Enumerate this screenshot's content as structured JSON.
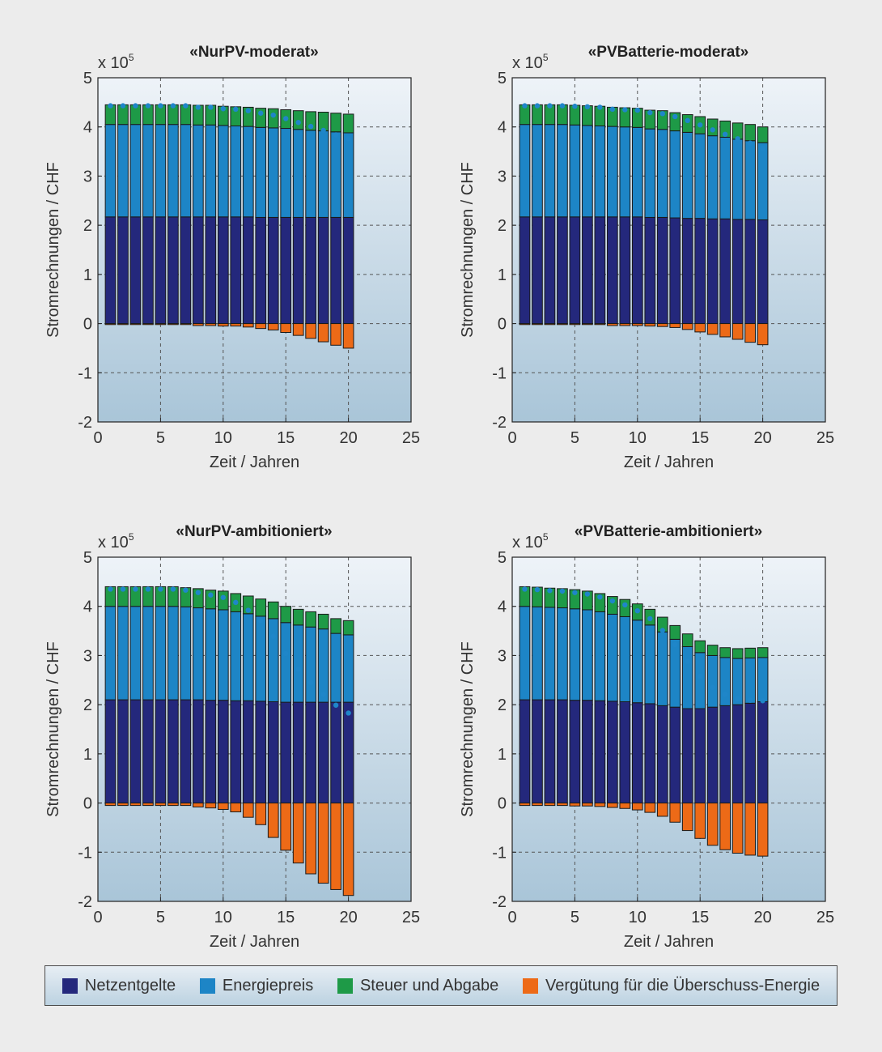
{
  "colors": {
    "netz": "#24287c",
    "energie": "#1d85c6",
    "steuer": "#1e9a47",
    "verguetung": "#ed6a17",
    "dots": "#1f86c9"
  },
  "legend": {
    "items": [
      {
        "label": "Netzentgelte",
        "color": "#24287c"
      },
      {
        "label": "Energiepreis",
        "color": "#1d85c6"
      },
      {
        "label": "Steuer und Abgabe",
        "color": "#1e9a47"
      },
      {
        "label": "Vergütung für die Überschuss-Energie",
        "color": "#ed6a17"
      }
    ]
  },
  "chart_data": [
    {
      "type": "bar",
      "title": "«NurPV-moderat»",
      "xlabel": "Zeit / Jahren",
      "ylabel": "Stromrechnungen / CHF",
      "y_multiplier_label": "x 10",
      "y_multiplier_exp": "5",
      "xlim": [
        0,
        25
      ],
      "ylim": [
        -2,
        5
      ],
      "xticks": [
        "0",
        "5",
        "10",
        "15",
        "20",
        "25"
      ],
      "yticks": [
        "-2",
        "-1",
        "0",
        "1",
        "2",
        "3",
        "4",
        "5"
      ],
      "grid": true,
      "stacked": true,
      "x": [
        1,
        2,
        3,
        4,
        5,
        6,
        7,
        8,
        9,
        10,
        11,
        12,
        13,
        14,
        15,
        16,
        17,
        18,
        19,
        20
      ],
      "series": [
        {
          "name": "Netzentgelte",
          "values": [
            2.17,
            2.17,
            2.17,
            2.17,
            2.17,
            2.17,
            2.17,
            2.17,
            2.17,
            2.17,
            2.17,
            2.17,
            2.16,
            2.16,
            2.16,
            2.16,
            2.16,
            2.16,
            2.16,
            2.16
          ]
        },
        {
          "name": "Energiepreis",
          "values": [
            1.88,
            1.88,
            1.88,
            1.88,
            1.88,
            1.88,
            1.88,
            1.87,
            1.87,
            1.86,
            1.85,
            1.84,
            1.83,
            1.82,
            1.81,
            1.79,
            1.77,
            1.76,
            1.74,
            1.72
          ]
        },
        {
          "name": "Steuer und Abgabe",
          "values": [
            0.4,
            0.4,
            0.4,
            0.4,
            0.4,
            0.4,
            0.4,
            0.4,
            0.4,
            0.39,
            0.39,
            0.39,
            0.39,
            0.39,
            0.38,
            0.38,
            0.38,
            0.38,
            0.38,
            0.38
          ]
        },
        {
          "name": "Vergütung für die Überschuss-Energie",
          "values": [
            -0.02,
            -0.02,
            -0.02,
            -0.02,
            -0.02,
            -0.02,
            -0.02,
            -0.04,
            -0.04,
            -0.05,
            -0.05,
            -0.07,
            -0.1,
            -0.13,
            -0.18,
            -0.24,
            -0.3,
            -0.37,
            -0.44,
            -0.5
          ]
        }
      ],
      "total": [
        4.43,
        4.43,
        4.43,
        4.43,
        4.43,
        4.43,
        4.43,
        4.4,
        4.4,
        4.37,
        4.36,
        4.33,
        4.28,
        4.24,
        4.17,
        4.09,
        4.01,
        3.93,
        3.84,
        3.76
      ]
    },
    {
      "type": "bar",
      "title": "«PVBatterie-moderat»",
      "xlabel": "Zeit / Jahren",
      "ylabel": "Stromrechnungen / CHF",
      "y_multiplier_label": "x 10",
      "y_multiplier_exp": "5",
      "xlim": [
        0,
        25
      ],
      "ylim": [
        -2,
        5
      ],
      "xticks": [
        "0",
        "5",
        "10",
        "15",
        "20",
        "25"
      ],
      "yticks": [
        "-2",
        "-1",
        "0",
        "1",
        "2",
        "3",
        "4",
        "5"
      ],
      "grid": true,
      "stacked": true,
      "x": [
        1,
        2,
        3,
        4,
        5,
        6,
        7,
        8,
        9,
        10,
        11,
        12,
        13,
        14,
        15,
        16,
        17,
        18,
        19,
        20
      ],
      "series": [
        {
          "name": "Netzentgelte",
          "values": [
            2.17,
            2.17,
            2.17,
            2.17,
            2.17,
            2.17,
            2.17,
            2.17,
            2.17,
            2.17,
            2.16,
            2.16,
            2.15,
            2.14,
            2.14,
            2.13,
            2.13,
            2.12,
            2.12,
            2.11
          ]
        },
        {
          "name": "Energiepreis",
          "values": [
            1.88,
            1.88,
            1.88,
            1.88,
            1.87,
            1.86,
            1.85,
            1.84,
            1.83,
            1.82,
            1.8,
            1.79,
            1.77,
            1.75,
            1.72,
            1.69,
            1.66,
            1.63,
            1.6,
            1.57
          ]
        },
        {
          "name": "Steuer und Abgabe",
          "values": [
            0.4,
            0.4,
            0.4,
            0.4,
            0.4,
            0.4,
            0.4,
            0.39,
            0.39,
            0.39,
            0.38,
            0.38,
            0.37,
            0.36,
            0.35,
            0.34,
            0.33,
            0.33,
            0.33,
            0.32
          ]
        },
        {
          "name": "Vergütung für die Überschuss-Energie",
          "values": [
            -0.02,
            -0.02,
            -0.02,
            -0.02,
            -0.02,
            -0.02,
            -0.02,
            -0.04,
            -0.04,
            -0.04,
            -0.05,
            -0.06,
            -0.08,
            -0.12,
            -0.17,
            -0.22,
            -0.27,
            -0.32,
            -0.38,
            -0.43
          ]
        }
      ],
      "total": [
        4.43,
        4.43,
        4.43,
        4.43,
        4.42,
        4.41,
        4.4,
        4.36,
        4.35,
        4.34,
        4.29,
        4.27,
        4.21,
        4.13,
        4.04,
        3.94,
        3.85,
        3.76,
        3.67,
        3.57
      ]
    },
    {
      "type": "bar",
      "title": "«NurPV-ambitioniert»",
      "xlabel": "Zeit / Jahren",
      "ylabel": "Stromrechnungen / CHF",
      "y_multiplier_label": "x 10",
      "y_multiplier_exp": "5",
      "xlim": [
        0,
        25
      ],
      "ylim": [
        -2,
        5
      ],
      "xticks": [
        "0",
        "5",
        "10",
        "15",
        "20",
        "25"
      ],
      "yticks": [
        "-2",
        "-1",
        "0",
        "1",
        "2",
        "3",
        "4",
        "5"
      ],
      "grid": true,
      "stacked": true,
      "x": [
        1,
        2,
        3,
        4,
        5,
        6,
        7,
        8,
        9,
        10,
        11,
        12,
        13,
        14,
        15,
        16,
        17,
        18,
        19,
        20
      ],
      "series": [
        {
          "name": "Netzentgelte",
          "values": [
            2.1,
            2.1,
            2.1,
            2.1,
            2.1,
            2.1,
            2.1,
            2.1,
            2.09,
            2.09,
            2.08,
            2.08,
            2.07,
            2.06,
            2.05,
            2.05,
            2.05,
            2.05,
            2.05,
            2.05
          ]
        },
        {
          "name": "Energiepreis",
          "values": [
            1.9,
            1.9,
            1.9,
            1.9,
            1.9,
            1.9,
            1.89,
            1.87,
            1.86,
            1.84,
            1.81,
            1.77,
            1.73,
            1.69,
            1.62,
            1.57,
            1.53,
            1.49,
            1.4,
            1.37
          ]
        },
        {
          "name": "Steuer und Abgabe",
          "values": [
            0.4,
            0.4,
            0.4,
            0.4,
            0.4,
            0.4,
            0.39,
            0.39,
            0.38,
            0.38,
            0.37,
            0.36,
            0.35,
            0.34,
            0.33,
            0.32,
            0.31,
            0.3,
            0.3,
            0.29
          ]
        },
        {
          "name": "Vergütung für die Überschuss-Energie",
          "values": [
            -0.05,
            -0.05,
            -0.05,
            -0.05,
            -0.05,
            -0.05,
            -0.05,
            -0.08,
            -0.1,
            -0.13,
            -0.18,
            -0.29,
            -0.44,
            -0.7,
            -0.96,
            -1.22,
            -1.44,
            -1.63,
            -1.76,
            -1.88
          ]
        }
      ],
      "total": [
        4.35,
        4.35,
        4.35,
        4.35,
        4.35,
        4.35,
        4.33,
        4.28,
        4.23,
        4.18,
        4.08,
        3.92,
        3.71,
        3.39,
        3.04,
        2.72,
        2.45,
        2.21,
        1.99,
        1.83
      ]
    },
    {
      "type": "bar",
      "title": "«PVBatterie-ambitioniert»",
      "xlabel": "Zeit / Jahren",
      "ylabel": "Stromrechnungen / CHF",
      "y_multiplier_label": "x 10",
      "y_multiplier_exp": "5",
      "xlim": [
        0,
        25
      ],
      "ylim": [
        -2,
        5
      ],
      "xticks": [
        "0",
        "5",
        "10",
        "15",
        "20",
        "25"
      ],
      "yticks": [
        "-2",
        "-1",
        "0",
        "1",
        "2",
        "3",
        "4",
        "5"
      ],
      "grid": true,
      "stacked": true,
      "x": [
        1,
        2,
        3,
        4,
        5,
        6,
        7,
        8,
        9,
        10,
        11,
        12,
        13,
        14,
        15,
        16,
        17,
        18,
        19,
        20
      ],
      "series": [
        {
          "name": "Netzentgelte",
          "values": [
            2.1,
            2.1,
            2.1,
            2.1,
            2.09,
            2.09,
            2.08,
            2.07,
            2.06,
            2.04,
            2.02,
            1.98,
            1.95,
            1.92,
            1.92,
            1.95,
            1.98,
            2.0,
            2.03,
            2.06
          ]
        },
        {
          "name": "Energiepreis",
          "values": [
            1.9,
            1.89,
            1.88,
            1.87,
            1.86,
            1.84,
            1.81,
            1.77,
            1.73,
            1.68,
            1.6,
            1.5,
            1.38,
            1.26,
            1.14,
            1.05,
            0.98,
            0.94,
            0.92,
            0.9
          ]
        },
        {
          "name": "Steuer und Abgabe",
          "values": [
            0.4,
            0.4,
            0.39,
            0.39,
            0.39,
            0.38,
            0.37,
            0.36,
            0.35,
            0.33,
            0.32,
            0.3,
            0.28,
            0.26,
            0.24,
            0.21,
            0.2,
            0.2,
            0.2,
            0.2
          ]
        },
        {
          "name": "Vergütung für die Überschuss-Energie",
          "values": [
            -0.05,
            -0.05,
            -0.05,
            -0.05,
            -0.06,
            -0.06,
            -0.07,
            -0.09,
            -0.11,
            -0.14,
            -0.19,
            -0.27,
            -0.39,
            -0.56,
            -0.72,
            -0.86,
            -0.95,
            -1.02,
            -1.06,
            -1.08
          ]
        }
      ],
      "total": [
        4.35,
        4.34,
        4.32,
        4.31,
        4.28,
        4.25,
        4.19,
        4.11,
        4.03,
        3.91,
        3.75,
        3.51,
        3.22,
        2.88,
        2.58,
        2.35,
        2.21,
        2.12,
        2.09,
        2.08
      ]
    }
  ]
}
